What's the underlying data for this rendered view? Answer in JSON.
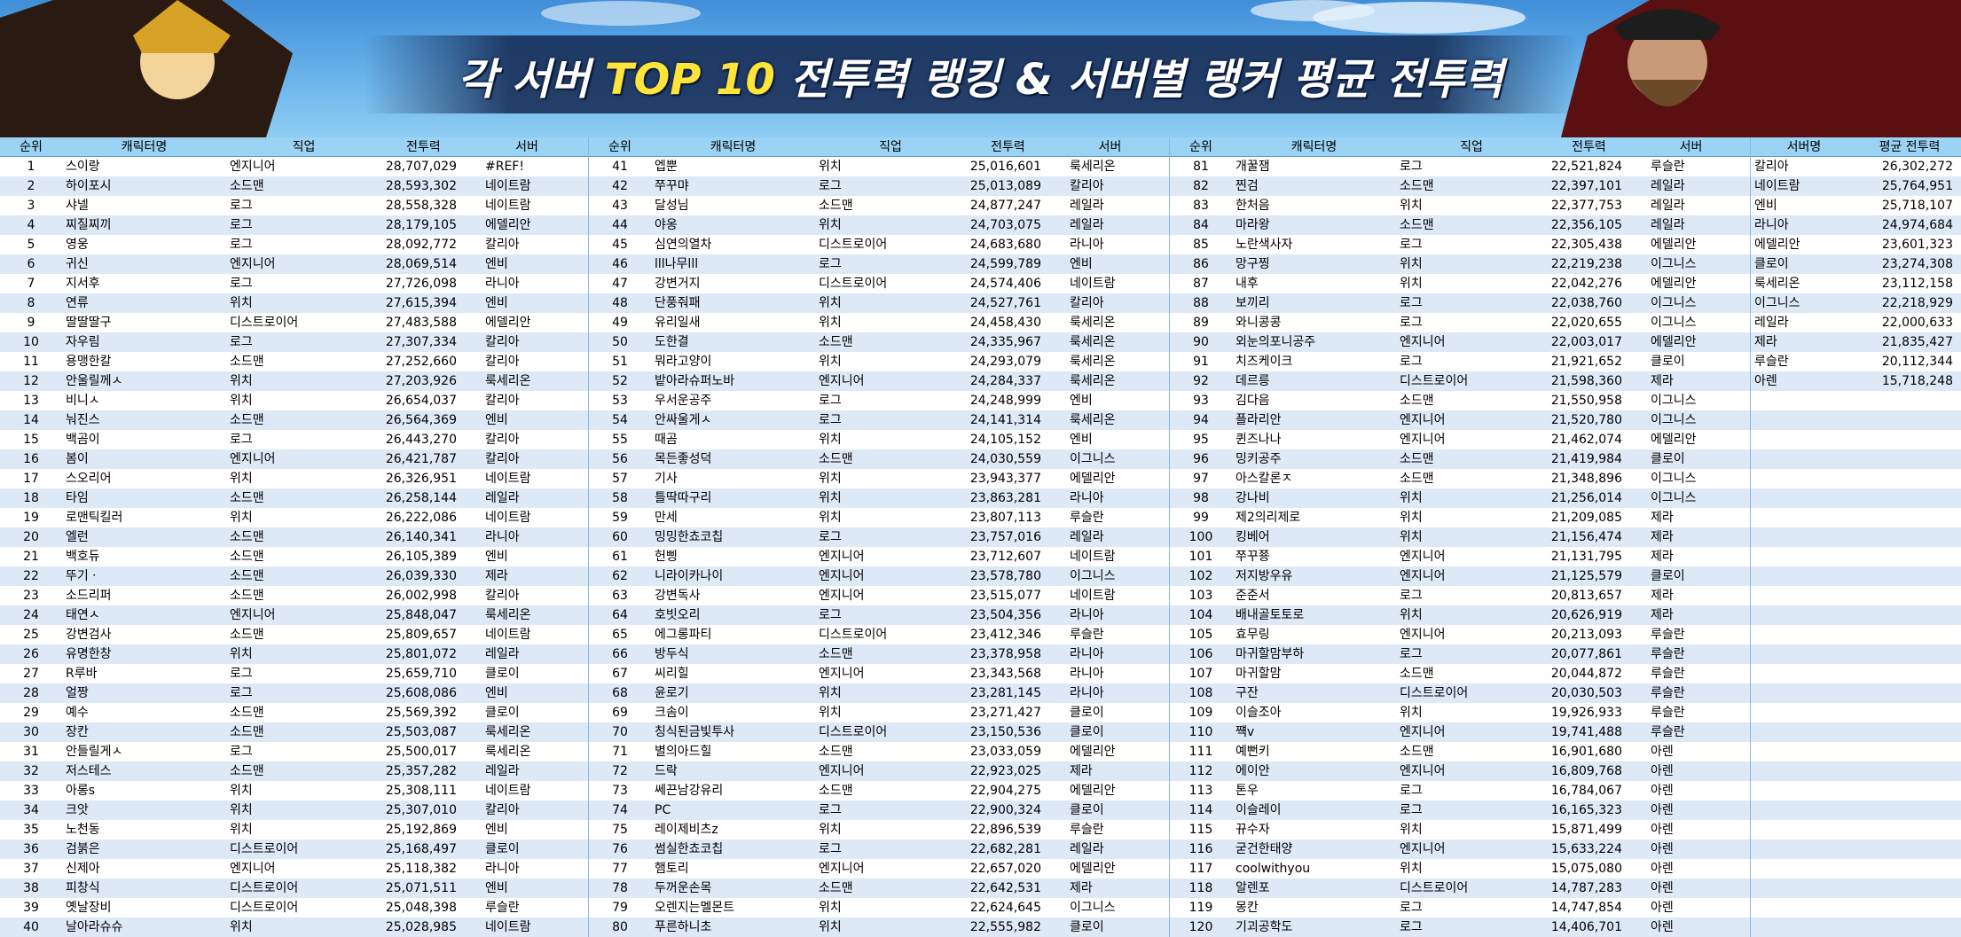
{
  "header": {
    "title": [
      "각 서버",
      "TOP 10",
      "전투력 랭킹 & 서버별 랭커 평균 전투력"
    ]
  },
  "table": {
    "columns": [
      "순위",
      "캐릭터명",
      "직업",
      "전투력",
      "서버"
    ],
    "rows": [
      [
        1,
        "스이랑",
        "엔지니어",
        "28,707,029",
        "#REF!"
      ],
      [
        2,
        "하이포시",
        "소드맨",
        "28,593,302",
        "네이트람"
      ],
      [
        3,
        "샤넬",
        "로그",
        "28,558,328",
        "네이트람"
      ],
      [
        4,
        "찌질찌끼",
        "로그",
        "28,179,105",
        "에델리안"
      ],
      [
        5,
        "영웅",
        "로그",
        "28,092,772",
        "칼리아"
      ],
      [
        6,
        "귀신",
        "엔지니어",
        "28,069,514",
        "엔비"
      ],
      [
        7,
        "지서후",
        "로그",
        "27,726,098",
        "라니아"
      ],
      [
        8,
        "연류",
        "위치",
        "27,615,394",
        "엔비"
      ],
      [
        9,
        "딸딸딸구",
        "디스트로이어",
        "27,483,588",
        "에델리안"
      ],
      [
        10,
        "자우림",
        "로그",
        "27,307,334",
        "칼리아"
      ],
      [
        11,
        "용맹한칼",
        "소드맨",
        "27,252,660",
        "칼리아"
      ],
      [
        12,
        "안울릴께ㅅ",
        "위치",
        "27,203,926",
        "룩세리온"
      ],
      [
        13,
        "비니ㅅ",
        "위치",
        "26,654,037",
        "칼리아"
      ],
      [
        14,
        "눠진스",
        "소드맨",
        "26,564,369",
        "엔비"
      ],
      [
        15,
        "백곰이",
        "로그",
        "26,443,270",
        "칼리아"
      ],
      [
        16,
        "봄이",
        "엔지니어",
        "26,421,787",
        "칼리아"
      ],
      [
        17,
        "스오리어",
        "위치",
        "26,326,951",
        "네이트람"
      ],
      [
        18,
        "타임",
        "소드맨",
        "26,258,144",
        "레일라"
      ],
      [
        19,
        "로맨틱킬러",
        "위치",
        "26,222,086",
        "네이트람"
      ],
      [
        20,
        "엘런",
        "소드맨",
        "26,140,341",
        "라니아"
      ],
      [
        21,
        "백호듀",
        "소드맨",
        "26,105,389",
        "엔비"
      ],
      [
        22,
        "뚜기ㆍ",
        "소드맨",
        "26,039,330",
        "제라"
      ],
      [
        23,
        "소드리퍼",
        "소드맨",
        "26,002,998",
        "칼리아"
      ],
      [
        24,
        "태연ㅅ",
        "엔지니어",
        "25,848,047",
        "룩세리온"
      ],
      [
        25,
        "강변검사",
        "소드맨",
        "25,809,657",
        "네이트람"
      ],
      [
        26,
        "유명한창",
        "위치",
        "25,801,072",
        "레일라"
      ],
      [
        27,
        "R루바",
        "로그",
        "25,659,710",
        "클로이"
      ],
      [
        28,
        "얼짱",
        "로그",
        "25,608,086",
        "엔비"
      ],
      [
        29,
        "예수",
        "소드맨",
        "25,569,392",
        "클로이"
      ],
      [
        30,
        "장칸",
        "소드맨",
        "25,503,087",
        "룩세리온"
      ],
      [
        31,
        "안들릴게ㅅ",
        "로그",
        "25,500,017",
        "룩세리온"
      ],
      [
        32,
        "저스테스",
        "소드맨",
        "25,357,282",
        "레일라"
      ],
      [
        33,
        "아롱s",
        "위치",
        "25,308,111",
        "네이트람"
      ],
      [
        34,
        "크앗",
        "위치",
        "25,307,010",
        "칼리아"
      ],
      [
        35,
        "노천동",
        "위치",
        "25,192,869",
        "엔비"
      ],
      [
        36,
        "검붉은",
        "디스트로이어",
        "25,168,497",
        "클로이"
      ],
      [
        37,
        "신제아",
        "엔지니어",
        "25,118,382",
        "라니아"
      ],
      [
        38,
        "피창식",
        "디스트로이어",
        "25,071,511",
        "엔비"
      ],
      [
        39,
        "옛날장비",
        "디스트로이어",
        "25,048,398",
        "루슬란"
      ],
      [
        40,
        "날아라슈슈",
        "위치",
        "25,028,985",
        "네이트람"
      ],
      [
        41,
        "엡뿐",
        "위치",
        "25,016,601",
        "룩세리온"
      ],
      [
        42,
        "쭈꾸먀",
        "로그",
        "25,013,089",
        "칼리아"
      ],
      [
        43,
        "달성님",
        "소드맨",
        "24,877,247",
        "레일라"
      ],
      [
        44,
        "야옹",
        "위치",
        "24,703,075",
        "레일라"
      ],
      [
        45,
        "심연의열차",
        "디스트로이어",
        "24,683,680",
        "라니아"
      ],
      [
        46,
        "lll나무lll",
        "로그",
        "24,599,789",
        "엔비"
      ],
      [
        47,
        "강변거지",
        "디스트로이어",
        "24,574,406",
        "네이트람"
      ],
      [
        48,
        "단풍줘패",
        "위치",
        "24,527,761",
        "칼리아"
      ],
      [
        49,
        "유리일새",
        "위치",
        "24,458,430",
        "룩세리온"
      ],
      [
        50,
        "도한결",
        "소드맨",
        "24,335,967",
        "룩세리온"
      ],
      [
        51,
        "뭐라고양이",
        "위치",
        "24,293,079",
        "룩세리온"
      ],
      [
        52,
        "밭아라슈퍼노바",
        "엔지니어",
        "24,284,337",
        "룩세리온"
      ],
      [
        53,
        "우서운공주",
        "로그",
        "24,248,999",
        "엔비"
      ],
      [
        54,
        "안싸울게ㅅ",
        "로그",
        "24,141,314",
        "룩세리온"
      ],
      [
        55,
        "때곰",
        "위치",
        "24,105,152",
        "엔비"
      ],
      [
        56,
        "목든좋성덕",
        "소드맨",
        "24,030,559",
        "이그니스"
      ],
      [
        57,
        "기사",
        "위치",
        "23,943,377",
        "에델리안"
      ],
      [
        58,
        "틀딱따구리",
        "위치",
        "23,863,281",
        "라니아"
      ],
      [
        59,
        "만세",
        "위치",
        "23,807,113",
        "루슬란"
      ],
      [
        60,
        "밍밍한쵸코칩",
        "로그",
        "23,757,016",
        "레일라"
      ],
      [
        61,
        "헌삥",
        "엔지니어",
        "23,712,607",
        "네이트람"
      ],
      [
        62,
        "니라이카나이",
        "엔지니어",
        "23,578,780",
        "이그니스"
      ],
      [
        63,
        "강변독사",
        "엔지니어",
        "23,515,077",
        "네이트람"
      ],
      [
        64,
        "호빗오리",
        "로그",
        "23,504,356",
        "라니아"
      ],
      [
        65,
        "에그롱파티",
        "디스트로이어",
        "23,412,346",
        "루슬란"
      ],
      [
        66,
        "방두식",
        "소드맨",
        "23,378,958",
        "라니아"
      ],
      [
        67,
        "씨리힐",
        "엔지니어",
        "23,343,568",
        "라니아"
      ],
      [
        68,
        "윤로기",
        "위치",
        "23,281,145",
        "라니아"
      ],
      [
        69,
        "크솜이",
        "위치",
        "23,271,427",
        "클로이"
      ],
      [
        70,
        "칭식된금빛투사",
        "디스트로이어",
        "23,150,536",
        "클로이"
      ],
      [
        71,
        "별의아드힐",
        "소드맨",
        "23,033,059",
        "에델리안"
      ],
      [
        72,
        "드락",
        "엔지니어",
        "22,923,025",
        "제라"
      ],
      [
        73,
        "쎄끈남강유리",
        "소드맨",
        "22,904,275",
        "에델리안"
      ],
      [
        74,
        "PC",
        "로그",
        "22,900,324",
        "클로이"
      ],
      [
        75,
        "레이제비츠z",
        "위치",
        "22,896,539",
        "루슬란"
      ],
      [
        76,
        "썸실한쵸코칩",
        "로그",
        "22,682,281",
        "레일라"
      ],
      [
        77,
        "햄토리",
        "엔지니어",
        "22,657,020",
        "에델리안"
      ],
      [
        78,
        "두꺼운손목",
        "소드맨",
        "22,642,531",
        "제라"
      ],
      [
        79,
        "오렌지는멜몬트",
        "위치",
        "22,624,645",
        "이그니스"
      ],
      [
        80,
        "푸른하니초",
        "위치",
        "22,555,982",
        "클로이"
      ],
      [
        81,
        "개꿀잼",
        "로그",
        "22,521,824",
        "루슬란"
      ],
      [
        82,
        "찐검",
        "소드맨",
        "22,397,101",
        "레일라"
      ],
      [
        83,
        "한처음",
        "위치",
        "22,377,753",
        "레일라"
      ],
      [
        84,
        "마라왕",
        "소드맨",
        "22,356,105",
        "레일라"
      ],
      [
        85,
        "노란색사자",
        "로그",
        "22,305,438",
        "에델리안"
      ],
      [
        86,
        "망구찡",
        "위치",
        "22,219,238",
        "이그니스"
      ],
      [
        87,
        "내후",
        "위치",
        "22,042,276",
        "에델리안"
      ],
      [
        88,
        "보끼리",
        "로그",
        "22,038,760",
        "이그니스"
      ],
      [
        89,
        "와니콩콩",
        "로그",
        "22,020,655",
        "이그니스"
      ],
      [
        90,
        "외눈의포니공주",
        "엔지니어",
        "22,003,017",
        "에델리안"
      ],
      [
        91,
        "치즈케이크",
        "로그",
        "21,921,652",
        "클로이"
      ],
      [
        92,
        "데르릉",
        "디스트로이어",
        "21,598,360",
        "제라"
      ],
      [
        93,
        "김다음",
        "소드맨",
        "21,550,958",
        "이그니스"
      ],
      [
        94,
        "플라리안",
        "엔지니어",
        "21,520,780",
        "이그니스"
      ],
      [
        95,
        "퀸즈나나",
        "엔지니어",
        "21,462,074",
        "에델리안"
      ],
      [
        96,
        "밍키공주",
        "소드맨",
        "21,419,984",
        "클로이"
      ],
      [
        97,
        "아스칼론ㅈ",
        "소드맨",
        "21,348,896",
        "이그니스"
      ],
      [
        98,
        "강나비",
        "위치",
        "21,256,014",
        "이그니스"
      ],
      [
        99,
        "제2의리제로",
        "위치",
        "21,209,085",
        "제라"
      ],
      [
        100,
        "킹베어",
        "위치",
        "21,156,474",
        "제라"
      ],
      [
        101,
        "쭈꾸쭁",
        "엔지니어",
        "21,131,795",
        "제라"
      ],
      [
        102,
        "저지방우유",
        "엔지니어",
        "21,125,579",
        "클로이"
      ],
      [
        103,
        "준준서",
        "로그",
        "20,813,657",
        "제라"
      ],
      [
        104,
        "배내골토토로",
        "위치",
        "20,626,919",
        "제라"
      ],
      [
        105,
        "효무링",
        "엔지니어",
        "20,213,093",
        "루슬란"
      ],
      [
        106,
        "마귀할맘부하",
        "로그",
        "20,077,861",
        "루슬란"
      ],
      [
        107,
        "마귀할맘",
        "소드맨",
        "20,044,872",
        "루슬란"
      ],
      [
        108,
        "구잔",
        "디스트로이어",
        "20,030,503",
        "루슬란"
      ],
      [
        109,
        "이슬조아",
        "위치",
        "19,926,933",
        "루슬란"
      ],
      [
        110,
        "쨱v",
        "엔지니어",
        "19,741,488",
        "루슬란"
      ],
      [
        111,
        "예뻔키",
        "소드맨",
        "16,901,680",
        "아렌"
      ],
      [
        112,
        "에이안",
        "엔지니어",
        "16,809,768",
        "아렌"
      ],
      [
        113,
        "톤우",
        "로그",
        "16,784,067",
        "아렌"
      ],
      [
        114,
        "이슬레이",
        "로그",
        "16,165,323",
        "아렌"
      ],
      [
        115,
        "뀨수자",
        "위치",
        "15,871,499",
        "아렌"
      ],
      [
        116,
        "굳건한태양",
        "엔지니어",
        "15,633,224",
        "아렌"
      ],
      [
        117,
        "coolwithyou",
        "위치",
        "15,075,080",
        "아렌"
      ],
      [
        118,
        "알렌포",
        "디스트로이어",
        "14,787,283",
        "아렌"
      ],
      [
        119,
        "몽칸",
        "로그",
        "14,747,854",
        "아렌"
      ],
      [
        120,
        "기괴공학도",
        "로그",
        "14,406,701",
        "아렌"
      ]
    ]
  },
  "server_table": {
    "columns": [
      "서버명",
      "평균 전투력"
    ],
    "rows": [
      [
        "칼리아",
        "26,302,272"
      ],
      [
        "네이트람",
        "25,764,951"
      ],
      [
        "엔비",
        "25,718,107"
      ],
      [
        "라니아",
        "24,974,684"
      ],
      [
        "에델리안",
        "23,601,323"
      ],
      [
        "클로이",
        "23,274,308"
      ],
      [
        "룩세리온",
        "23,112,158"
      ],
      [
        "이그니스",
        "22,218,929"
      ],
      [
        "레일라",
        "22,000,633"
      ],
      [
        "제라",
        "21,835,427"
      ],
      [
        "루슬란",
        "20,112,344"
      ],
      [
        "아렌",
        "15,718,248"
      ]
    ]
  }
}
